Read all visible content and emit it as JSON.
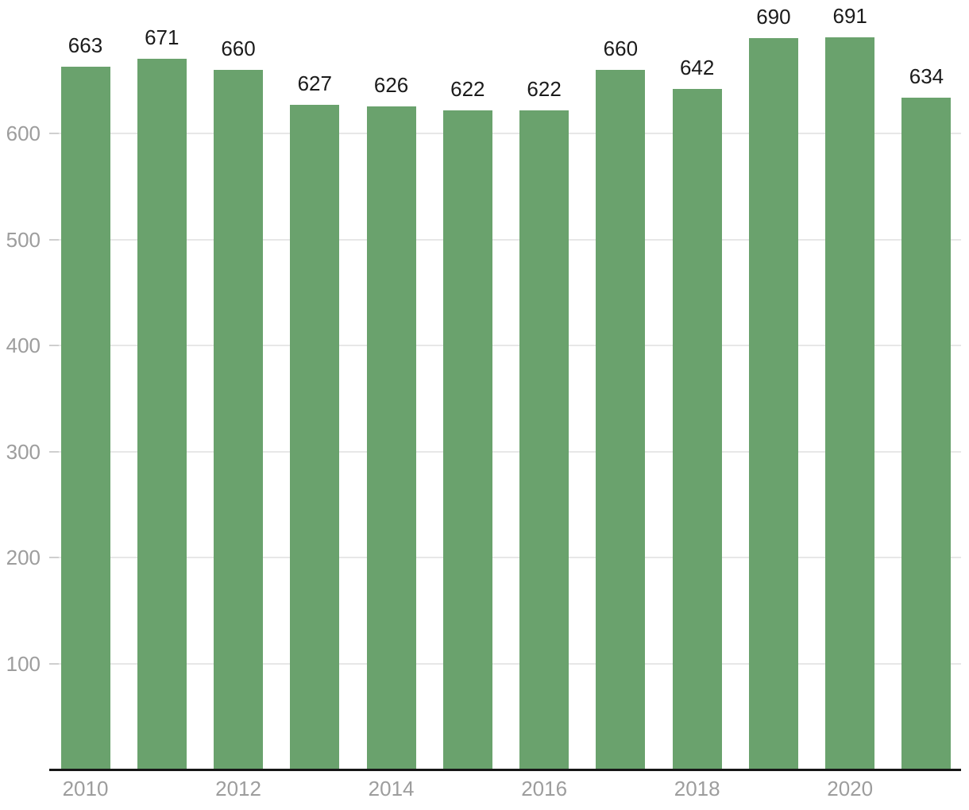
{
  "chart_data": {
    "type": "bar",
    "categories": [
      "2010",
      "2011",
      "2012",
      "2013",
      "2014",
      "2015",
      "2016",
      "2017",
      "2018",
      "2019",
      "2020",
      "2021"
    ],
    "values": [
      663,
      671,
      660,
      627,
      626,
      622,
      622,
      660,
      642,
      690,
      691,
      634
    ],
    "title": "",
    "xlabel": "",
    "ylabel": "",
    "ylim": [
      0,
      700
    ],
    "y_ticks": [
      100,
      200,
      300,
      400,
      500,
      600
    ],
    "x_tick_labels": [
      "2010",
      "2012",
      "2014",
      "2016",
      "2018",
      "2020"
    ],
    "value_labels_shown": true,
    "grid": true,
    "legend_position": "none",
    "colors": {
      "bar": "#6aa26d",
      "gridline": "#e7e7e7",
      "y_tick": "#cfcfcf",
      "axis_label": "#9d9d9d",
      "value_label": "#1b1b1b",
      "axis_line": "#161616",
      "background": "#ffffff"
    }
  }
}
